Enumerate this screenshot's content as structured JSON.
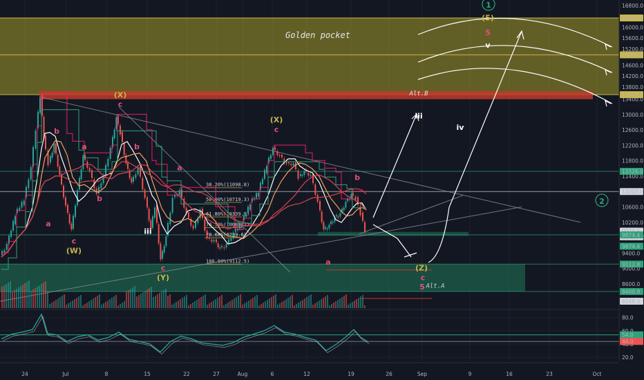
{
  "chart_data": {
    "type": "candlestick",
    "symbol_timeframe": "",
    "x_ticks": [
      "24",
      "Jul",
      "8",
      "15",
      "22",
      "27",
      "Aug",
      "6",
      "12",
      "19",
      "26",
      "Sep",
      "9",
      "16",
      "23",
      "Oct"
    ],
    "y_ticks": [
      8600.0,
      9000.0,
      9400.0,
      9800.0,
      10200.0,
      10600.0,
      11000.0,
      11400.0,
      11800.0,
      12200.0,
      12600.0,
      13000.0,
      13400.0,
      13800.0,
      14200.0,
      14600.0,
      15200.0,
      15600.0,
      16000.0,
      16800.0
    ],
    "ylim": [
      7900,
      16950
    ],
    "price_tags": [
      {
        "text": "16341.5",
        "color": "#c8b44a"
      },
      {
        "text": "14983.2",
        "color": "#c8b44a"
      },
      {
        "text": "13518.7",
        "color": "#c8b44a"
      },
      {
        "text": "11526.0",
        "color": "#2ea37a"
      },
      {
        "text": "11000.0",
        "color": "#d1d4dc"
      },
      {
        "text": "9970.6",
        "color": "#d1d4dc"
      },
      {
        "text": "03:33:46",
        "color": "#d1d4dc"
      },
      {
        "text": "9874.4",
        "color": "#2ea37a"
      },
      {
        "text": "9874.4",
        "color": "#2ea37a"
      },
      {
        "text": "9112.8",
        "color": "#2ea37a"
      },
      {
        "text": "8400.9",
        "color": "#2ea37a"
      },
      {
        "text": "8148.3",
        "color": "#d1d4dc"
      }
    ],
    "zones": [
      {
        "label": "Golden pocket",
        "from": 13518.7,
        "to": 16341.5,
        "color": "#a49a2a"
      },
      {
        "label": "Alt.B",
        "from": 13400,
        "to": 13650,
        "color": "#c0392b"
      },
      {
        "label": "",
        "from": 8400.9,
        "to": 9112.8,
        "color": "#1f6f55"
      },
      {
        "label": "",
        "from": 9850,
        "to": 9950,
        "color": "#1f6f55"
      }
    ],
    "fib_levels": [
      {
        "label": "38.20%(11098.8)",
        "value": 11098.8
      },
      {
        "label": "50.00%(10719.3)",
        "value": 10719.3
      },
      {
        "label": "61.80%(10339.9)",
        "value": 10339.9
      },
      {
        "label": "70.50%(10060.1)",
        "value": 10060.1
      },
      {
        "label": "78.60%(9799.6)",
        "value": 9799.6
      },
      {
        "label": "100.00%(9112.5)",
        "value": 9112.5
      }
    ],
    "price_path": [
      {
        "x": 0,
        "y": 9300
      },
      {
        "x": 10,
        "y": 9600
      },
      {
        "x": 22,
        "y": 10400
      },
      {
        "x": 35,
        "y": 10800
      },
      {
        "x": 45,
        "y": 11600
      },
      {
        "x": 52,
        "y": 12600
      },
      {
        "x": 58,
        "y": 13450
      },
      {
        "x": 63,
        "y": 12400
      },
      {
        "x": 70,
        "y": 11700
      },
      {
        "x": 78,
        "y": 12200
      },
      {
        "x": 86,
        "y": 11400
      },
      {
        "x": 95,
        "y": 10600
      },
      {
        "x": 103,
        "y": 9980
      },
      {
        "x": 112,
        "y": 11000
      },
      {
        "x": 120,
        "y": 11900
      },
      {
        "x": 130,
        "y": 11500
      },
      {
        "x": 140,
        "y": 10900
      },
      {
        "x": 150,
        "y": 11400
      },
      {
        "x": 160,
        "y": 12100
      },
      {
        "x": 168,
        "y": 12900
      },
      {
        "x": 174,
        "y": 12500
      },
      {
        "x": 182,
        "y": 11700
      },
      {
        "x": 190,
        "y": 11200
      },
      {
        "x": 200,
        "y": 11600
      },
      {
        "x": 210,
        "y": 10800
      },
      {
        "x": 218,
        "y": 10000
      },
      {
        "x": 224,
        "y": 10600
      },
      {
        "x": 232,
        "y": 9200
      },
      {
        "x": 240,
        "y": 9800
      },
      {
        "x": 250,
        "y": 10800
      },
      {
        "x": 260,
        "y": 11000
      },
      {
        "x": 270,
        "y": 10400
      },
      {
        "x": 280,
        "y": 10000
      },
      {
        "x": 290,
        "y": 10500
      },
      {
        "x": 300,
        "y": 9750
      },
      {
        "x": 310,
        "y": 9700
      },
      {
        "x": 318,
        "y": 9500
      },
      {
        "x": 328,
        "y": 9600
      },
      {
        "x": 338,
        "y": 9900
      },
      {
        "x": 350,
        "y": 10200
      },
      {
        "x": 362,
        "y": 10700
      },
      {
        "x": 374,
        "y": 11000
      },
      {
        "x": 386,
        "y": 11700
      },
      {
        "x": 395,
        "y": 12100
      },
      {
        "x": 405,
        "y": 11900
      },
      {
        "x": 415,
        "y": 11700
      },
      {
        "x": 425,
        "y": 11700
      },
      {
        "x": 432,
        "y": 11350
      },
      {
        "x": 440,
        "y": 11500
      },
      {
        "x": 450,
        "y": 11400
      },
      {
        "x": 460,
        "y": 10700
      },
      {
        "x": 468,
        "y": 9980
      },
      {
        "x": 476,
        "y": 10100
      },
      {
        "x": 484,
        "y": 10300
      },
      {
        "x": 492,
        "y": 10400
      },
      {
        "x": 500,
        "y": 10700
      },
      {
        "x": 508,
        "y": 10900
      },
      {
        "x": 515,
        "y": 10800
      },
      {
        "x": 522,
        "y": 10400
      },
      {
        "x": 528,
        "y": 9970
      }
    ],
    "oscillator": {
      "ticks": [
        20.0,
        40.0,
        60.0,
        80.0
      ],
      "tags": [
        {
          "text": "54.0",
          "value": 54
        },
        {
          "text": "44.0",
          "value": 44
        }
      ],
      "points": [
        {
          "x": 0,
          "y": 48
        },
        {
          "x": 15,
          "y": 55
        },
        {
          "x": 30,
          "y": 58
        },
        {
          "x": 45,
          "y": 62
        },
        {
          "x": 58,
          "y": 85
        },
        {
          "x": 66,
          "y": 56
        },
        {
          "x": 80,
          "y": 54
        },
        {
          "x": 95,
          "y": 44
        },
        {
          "x": 110,
          "y": 51
        },
        {
          "x": 125,
          "y": 54
        },
        {
          "x": 140,
          "y": 46
        },
        {
          "x": 155,
          "y": 50
        },
        {
          "x": 170,
          "y": 58
        },
        {
          "x": 185,
          "y": 47
        },
        {
          "x": 200,
          "y": 44
        },
        {
          "x": 215,
          "y": 40
        },
        {
          "x": 230,
          "y": 28
        },
        {
          "x": 245,
          "y": 44
        },
        {
          "x": 260,
          "y": 52
        },
        {
          "x": 275,
          "y": 48
        },
        {
          "x": 290,
          "y": 42
        },
        {
          "x": 305,
          "y": 40
        },
        {
          "x": 320,
          "y": 38
        },
        {
          "x": 335,
          "y": 42
        },
        {
          "x": 350,
          "y": 50
        },
        {
          "x": 365,
          "y": 55
        },
        {
          "x": 380,
          "y": 60
        },
        {
          "x": 395,
          "y": 68
        },
        {
          "x": 410,
          "y": 58
        },
        {
          "x": 425,
          "y": 55
        },
        {
          "x": 440,
          "y": 50
        },
        {
          "x": 455,
          "y": 46
        },
        {
          "x": 470,
          "y": 30
        },
        {
          "x": 485,
          "y": 40
        },
        {
          "x": 500,
          "y": 52
        },
        {
          "x": 510,
          "y": 62
        },
        {
          "x": 520,
          "y": 50
        },
        {
          "x": 530,
          "y": 44
        }
      ]
    },
    "wave_labels": [
      {
        "text": "a",
        "color": "#e0507a",
        "x": 68,
        "y": 10100
      },
      {
        "text": "b",
        "color": "#e0507a",
        "x": 80,
        "y": 12500
      },
      {
        "text": "a",
        "color": "#e0507a",
        "x": 120,
        "y": 12100
      },
      {
        "text": "b",
        "color": "#e0507a",
        "x": 142,
        "y": 10750
      },
      {
        "text": "c",
        "color": "#e0507a",
        "x": 105,
        "y": 9650
      },
      {
        "text": "(W)",
        "color": "#c8b44a",
        "x": 105,
        "y": 9400
      },
      {
        "text": "(X)",
        "color": "#c8b44a",
        "x": 172,
        "y": 13450
      },
      {
        "text": "c",
        "color": "#e0507a",
        "x": 172,
        "y": 13200
      },
      {
        "text": "b",
        "color": "#e0507a",
        "x": 196,
        "y": 12100
      },
      {
        "text": "a",
        "color": "#e0507a",
        "x": 258,
        "y": 11550
      },
      {
        "text": "iii",
        "color": "#ffffff",
        "x": 212,
        "y": 9900
      },
      {
        "text": "c",
        "color": "#e0507a",
        "x": 234,
        "y": 8950
      },
      {
        "text": "(Y)",
        "color": "#c8b44a",
        "x": 234,
        "y": 8700
      },
      {
        "text": "(X)",
        "color": "#c8b44a",
        "x": 398,
        "y": 12800
      },
      {
        "text": "c",
        "color": "#e0507a",
        "x": 398,
        "y": 12550
      },
      {
        "text": "b",
        "color": "#e0507a",
        "x": 515,
        "y": 11300
      },
      {
        "text": "a",
        "color": "#e0507a",
        "x": 473,
        "y": 9100
      },
      {
        "text": "c",
        "color": "#e0507a",
        "x": 610,
        "y": 8700
      },
      {
        "text": "(Z)",
        "color": "#c8b44a",
        "x": 608,
        "y": 8950
      },
      {
        "text": "5",
        "color": "#e0507a",
        "x": 609,
        "y": 8450
      },
      {
        "text": "iii",
        "color": "#ffffff",
        "x": 604,
        "y": 12900
      },
      {
        "text": "iv",
        "color": "#ffffff",
        "x": 664,
        "y": 12600
      },
      {
        "text": "(5)",
        "color": "#c8b44a",
        "x": 704,
        "y": 16250
      },
      {
        "text": "5",
        "color": "#e0507a",
        "x": 704,
        "y": 15700
      },
      {
        "text": "v",
        "color": "#ffffff",
        "x": 704,
        "y": 15250
      },
      {
        "text": "1",
        "color": "#2ea37a",
        "x": 705,
        "y": 16750
      },
      {
        "text": "2",
        "color": "#2ea37a",
        "x": 869,
        "y": 10700
      },
      {
        "text": "Alt.A",
        "color": "#d1d4dc",
        "x": 628,
        "y": 8500
      },
      {
        "text": "Golden pocket",
        "color": "#e6e6e6",
        "x": 458,
        "y": 15600
      },
      {
        "text": "Alt.B",
        "color": "#e6e6e6",
        "x": 604,
        "y": 13500
      }
    ]
  }
}
